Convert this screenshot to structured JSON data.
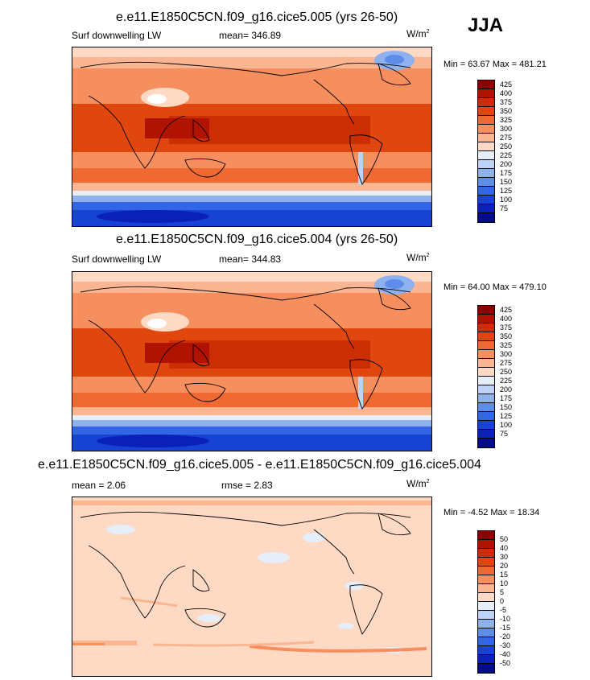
{
  "season": "JJA",
  "panels": [
    {
      "title": "e.e11.E1850C5CN.f09_g16.cice5.005 (yrs 26-50)",
      "left_label": "Surf downwelling LW",
      "center_label": "mean= 346.89",
      "units": "W/m",
      "units_sup": "2",
      "minmax": "Min =  63.67 Max = 481.21",
      "colorbar_labels": [
        "425",
        "400",
        "375",
        "350",
        "325",
        "300",
        "275",
        "250",
        "225",
        "200",
        "175",
        "150",
        "125",
        "100",
        "75"
      ]
    },
    {
      "title": "e.e11.E1850C5CN.f09_g16.cice5.004 (yrs 26-50)",
      "left_label": "Surf downwelling LW",
      "center_label": "mean= 344.83",
      "units": "W/m",
      "units_sup": "2",
      "minmax": "Min =  64.00 Max = 479.10",
      "colorbar_labels": [
        "425",
        "400",
        "375",
        "350",
        "325",
        "300",
        "275",
        "250",
        "225",
        "200",
        "175",
        "150",
        "125",
        "100",
        "75"
      ]
    },
    {
      "title": "e.e11.E1850C5CN.f09_g16.cice5.005 - e.e11.E1850C5CN.f09_g16.cice5.004",
      "left_label": "mean =   2.06",
      "center_label": "rmse =   2.83",
      "units": "W/m",
      "units_sup": "2",
      "minmax": "Min =  -4.52 Max =  18.34",
      "colorbar_labels": [
        "50",
        "40",
        "30",
        "20",
        "15",
        "10",
        "5",
        "0",
        "-5",
        "-10",
        "-15",
        "-20",
        "-30",
        "-40",
        "-50"
      ]
    }
  ],
  "colors": {
    "scale": [
      "#8b0000",
      "#b01400",
      "#cc2e04",
      "#e0470e",
      "#ee6a32",
      "#f68e5e",
      "#fbb591",
      "#fedac4",
      "#e6eefa",
      "#bcd2f6",
      "#8fb1f0",
      "#5e8cea",
      "#3266e6",
      "#1743d5",
      "#0a20b8",
      "#040c8c"
    ],
    "map_frame": "#000000",
    "background": "#ffffff"
  }
}
